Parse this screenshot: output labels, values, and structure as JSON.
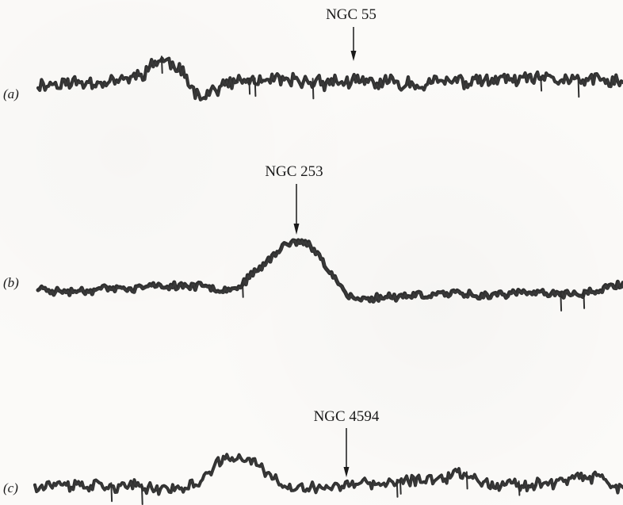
{
  "chart_data": [
    {
      "type": "line",
      "panel_label": "(a)",
      "annotation": {
        "label": "NGC 55",
        "x": 0.5
      },
      "xlim": [
        0,
        1
      ],
      "x": [
        0.0,
        0.05,
        0.1,
        0.15,
        0.18,
        0.2,
        0.21,
        0.23,
        0.25,
        0.26,
        0.28,
        0.3,
        0.32,
        0.35,
        0.4,
        0.45,
        0.5,
        0.55,
        0.6,
        0.65,
        0.7,
        0.75,
        0.8,
        0.85,
        0.9,
        0.95,
        1.0
      ],
      "y": [
        0,
        0.02,
        0.05,
        0.08,
        0.22,
        0.42,
        0.48,
        0.38,
        0.15,
        -0.05,
        -0.18,
        -0.12,
        -0.02,
        0.05,
        0.06,
        0.04,
        0.05,
        0.02,
        0.03,
        0.02,
        0.04,
        0.05,
        0.07,
        0.08,
        0.09,
        0.06,
        0.05
      ],
      "noise": 0.11,
      "seed": 11
    },
    {
      "type": "line",
      "panel_label": "(b)",
      "annotation": {
        "label": "NGC 253",
        "x": 0.44
      },
      "xlim": [
        0,
        1
      ],
      "x": [
        0.0,
        0.05,
        0.1,
        0.15,
        0.2,
        0.25,
        0.3,
        0.33,
        0.35,
        0.37,
        0.4,
        0.42,
        0.44,
        0.46,
        0.48,
        0.5,
        0.52,
        0.53,
        0.55,
        0.57,
        0.6,
        0.65,
        0.7,
        0.75,
        0.8,
        0.85,
        0.9,
        0.95,
        1.0
      ],
      "y": [
        0.0,
        -0.05,
        0.0,
        0.0,
        0.03,
        0.05,
        0.02,
        0.0,
        0.08,
        0.25,
        0.5,
        0.68,
        0.76,
        0.7,
        0.52,
        0.28,
        0.0,
        -0.12,
        -0.18,
        -0.15,
        -0.12,
        -0.1,
        -0.08,
        -0.1,
        -0.08,
        -0.07,
        -0.1,
        -0.05,
        0.08
      ],
      "noise": 0.05,
      "seed": 23
    },
    {
      "type": "line",
      "panel_label": "(c)",
      "annotation": {
        "label": "NGC 4594",
        "x": 0.505
      },
      "xlim": [
        0,
        1
      ],
      "x": [
        0.0,
        0.05,
        0.1,
        0.15,
        0.2,
        0.25,
        0.28,
        0.3,
        0.32,
        0.35,
        0.38,
        0.4,
        0.42,
        0.45,
        0.5,
        0.55,
        0.6,
        0.65,
        0.7,
        0.72,
        0.75,
        0.78,
        0.8,
        0.85,
        0.9,
        0.95,
        1.0
      ],
      "y": [
        0.0,
        0.01,
        0.0,
        -0.02,
        -0.03,
        -0.05,
        0.05,
        0.18,
        0.32,
        0.35,
        0.28,
        0.12,
        -0.02,
        -0.05,
        -0.02,
        0.0,
        0.02,
        0.05,
        0.12,
        0.15,
        0.1,
        0.02,
        0.0,
        0.02,
        0.05,
        0.1,
        -0.05
      ],
      "noise": 0.06,
      "seed": 37
    }
  ]
}
